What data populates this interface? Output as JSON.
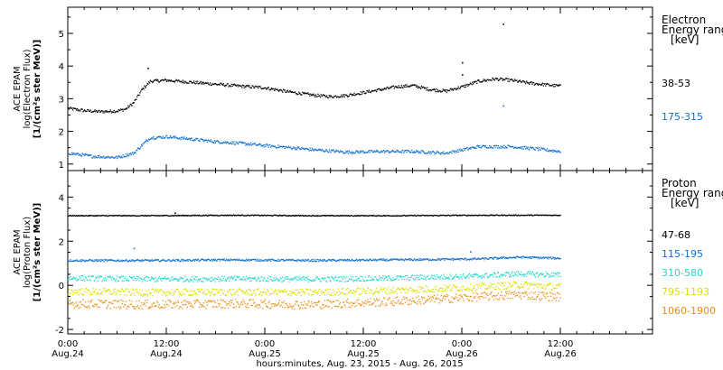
{
  "chart_data": [
    {
      "type": "scatter",
      "panel": "electron",
      "ylabel_lines": [
        "ACE EPAM",
        "log(Electron Flux)",
        "[1/(cm²s ster MeV)]"
      ],
      "yticks": [
        1,
        2,
        3,
        4,
        5
      ],
      "ylim": [
        0.8,
        5.8
      ],
      "x_range_hours": [
        0,
        60
      ],
      "side_title": [
        "Electron",
        "Energy ranges",
        "[keV]"
      ],
      "series": [
        {
          "name": "38-53",
          "color": "#000000",
          "points": [
            [
              0,
              2.72
            ],
            [
              2,
              2.65
            ],
            [
              4,
              2.62
            ],
            [
              6,
              2.64
            ],
            [
              7,
              2.7
            ],
            [
              8,
              2.9
            ],
            [
              9,
              3.3
            ],
            [
              10,
              3.55
            ],
            [
              12,
              3.58
            ],
            [
              15,
              3.52
            ],
            [
              18,
              3.46
            ],
            [
              21,
              3.4
            ],
            [
              24,
              3.35
            ],
            [
              27,
              3.22
            ],
            [
              30,
              3.12
            ],
            [
              32,
              3.08
            ],
            [
              34,
              3.12
            ],
            [
              37,
              3.25
            ],
            [
              40,
              3.38
            ],
            [
              42,
              3.42
            ],
            [
              44,
              3.3
            ],
            [
              46,
              3.25
            ],
            [
              48,
              3.38
            ],
            [
              50,
              3.55
            ],
            [
              52,
              3.62
            ],
            [
              54,
              3.58
            ],
            [
              56,
              3.5
            ],
            [
              58,
              3.45
            ],
            [
              60,
              3.4
            ]
          ],
          "outliers": [
            [
              9.7,
              3.95
            ],
            [
              48,
              4.12
            ],
            [
              53,
              5.3
            ],
            [
              48,
              3.75
            ]
          ]
        },
        {
          "name": "175-315",
          "color": "#0d6fce",
          "points": [
            [
              0,
              1.35
            ],
            [
              3,
              1.25
            ],
            [
              6,
              1.22
            ],
            [
              8,
              1.35
            ],
            [
              9,
              1.6
            ],
            [
              10,
              1.82
            ],
            [
              12,
              1.85
            ],
            [
              15,
              1.78
            ],
            [
              18,
              1.7
            ],
            [
              21,
              1.65
            ],
            [
              24,
              1.58
            ],
            [
              27,
              1.52
            ],
            [
              30,
              1.45
            ],
            [
              34,
              1.38
            ],
            [
              38,
              1.4
            ],
            [
              42,
              1.4
            ],
            [
              46,
              1.35
            ],
            [
              48,
              1.45
            ],
            [
              50,
              1.55
            ],
            [
              54,
              1.55
            ],
            [
              57,
              1.48
            ],
            [
              60,
              1.4
            ]
          ],
          "outliers": [
            [
              53,
              2.8
            ]
          ]
        }
      ]
    },
    {
      "type": "scatter",
      "panel": "proton",
      "ylabel_lines": [
        "ACE EPAM",
        "log(Proton Flux)",
        "[1/(cm²s ster MeV)]"
      ],
      "yticks": [
        -2,
        0,
        2,
        4
      ],
      "ylim": [
        -2.2,
        5.2
      ],
      "x_range_hours": [
        0,
        60
      ],
      "side_title": [
        "Proton",
        "Energy ranges",
        "[keV]"
      ],
      "series": [
        {
          "name": "47-68",
          "color": "#000000",
          "points": [
            [
              0,
              3.18
            ],
            [
              10,
              3.18
            ],
            [
              20,
              3.2
            ],
            [
              30,
              3.18
            ],
            [
              40,
              3.18
            ],
            [
              50,
              3.2
            ],
            [
              60,
              3.2
            ]
          ],
          "outliers": [
            [
              13,
              3.3
            ]
          ]
        },
        {
          "name": "115-195",
          "color": "#0d6fce",
          "points": [
            [
              0,
              1.15
            ],
            [
              10,
              1.15
            ],
            [
              20,
              1.18
            ],
            [
              30,
              1.15
            ],
            [
              40,
              1.18
            ],
            [
              50,
              1.22
            ],
            [
              55,
              1.3
            ],
            [
              60,
              1.25
            ]
          ],
          "outliers": [
            [
              8,
              1.7
            ],
            [
              49,
              1.55
            ]
          ]
        },
        {
          "name": "310-580",
          "color": "#1fd8c8",
          "points": [
            [
              0,
              0.35
            ],
            [
              10,
              0.3
            ],
            [
              20,
              0.32
            ],
            [
              30,
              0.3
            ],
            [
              40,
              0.35
            ],
            [
              50,
              0.45
            ],
            [
              55,
              0.55
            ],
            [
              60,
              0.48
            ]
          ]
        },
        {
          "name": "795-1193",
          "color": "#d8e000",
          "points": [
            [
              0,
              -0.25
            ],
            [
              10,
              -0.3
            ],
            [
              20,
              -0.28
            ],
            [
              30,
              -0.3
            ],
            [
              40,
              -0.2
            ],
            [
              50,
              -0.05
            ],
            [
              55,
              0.05
            ],
            [
              60,
              -0.05
            ]
          ]
        },
        {
          "name": "1060-1900",
          "color": "#ee8a10",
          "points": [
            [
              0,
              -0.8
            ],
            [
              10,
              -0.85
            ],
            [
              20,
              -0.8
            ],
            [
              30,
              -0.85
            ],
            [
              40,
              -0.7
            ],
            [
              50,
              -0.5
            ],
            [
              55,
              -0.4
            ],
            [
              60,
              -0.5
            ]
          ]
        }
      ]
    }
  ],
  "x_axis": {
    "tick_labels": [
      {
        "h": 0,
        "time": "0:00",
        "date": "Aug.24"
      },
      {
        "h": 12,
        "time": "12:00",
        "date": "Aug.24"
      },
      {
        "h": 24,
        "time": "0:00",
        "date": "Aug.25"
      },
      {
        "h": 36,
        "time": "12:00",
        "date": "Aug.25"
      },
      {
        "h": 48,
        "time": "0:00",
        "date": "Aug.26"
      },
      {
        "h": 60,
        "time": "12:00",
        "date": "Aug.26"
      }
    ],
    "xlabel": "hours:minutes, Aug. 23, 2015 - Aug. 26, 2015"
  }
}
